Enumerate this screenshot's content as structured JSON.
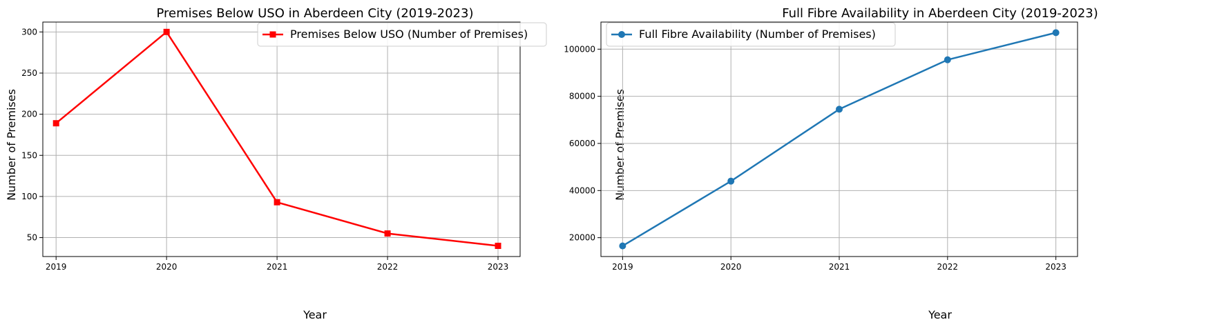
{
  "chart_data": [
    {
      "type": "line",
      "title": "Premises Below USO in Aberdeen City (2019-2023)",
      "xlabel": "Year",
      "ylabel": "Number of Premises",
      "x": [
        2019,
        2020,
        2021,
        2022,
        2023
      ],
      "x_tick_labels": [
        "2019",
        "2020",
        "2021",
        "2022",
        "2023"
      ],
      "xlim": [
        2018.88,
        2023.2
      ],
      "ylim": [
        27,
        312
      ],
      "y_ticks": [
        50,
        100,
        150,
        200,
        250,
        300
      ],
      "y_tick_labels": [
        "50",
        "100",
        "150",
        "200",
        "250",
        "300"
      ],
      "series": [
        {
          "name": "Premises Below USO (Number of Premises)",
          "values": [
            189,
            300,
            93,
            55,
            40
          ],
          "color": "#ff0000",
          "marker": "square"
        }
      ],
      "grid": true,
      "legend_position": "upper right"
    },
    {
      "type": "line",
      "title": "Full Fibre Availability in Aberdeen City (2019-2023)",
      "xlabel": "Year",
      "ylabel": "Number of Premises",
      "x": [
        2019,
        2020,
        2021,
        2022,
        2023
      ],
      "x_tick_labels": [
        "2019",
        "2020",
        "2021",
        "2022",
        "2023"
      ],
      "xlim": [
        2018.8,
        2023.2
      ],
      "ylim": [
        12000,
        111500
      ],
      "y_ticks": [
        20000,
        40000,
        60000,
        80000,
        100000
      ],
      "y_tick_labels": [
        "20000",
        "40000",
        "60000",
        "80000",
        "100000"
      ],
      "series": [
        {
          "name": "Full Fibre Availability (Number of Premises)",
          "values": [
            16500,
            44000,
            74500,
            95500,
            107000
          ],
          "color": "#1f77b4",
          "marker": "circle"
        }
      ],
      "grid": true,
      "legend_position": "upper left"
    }
  ]
}
